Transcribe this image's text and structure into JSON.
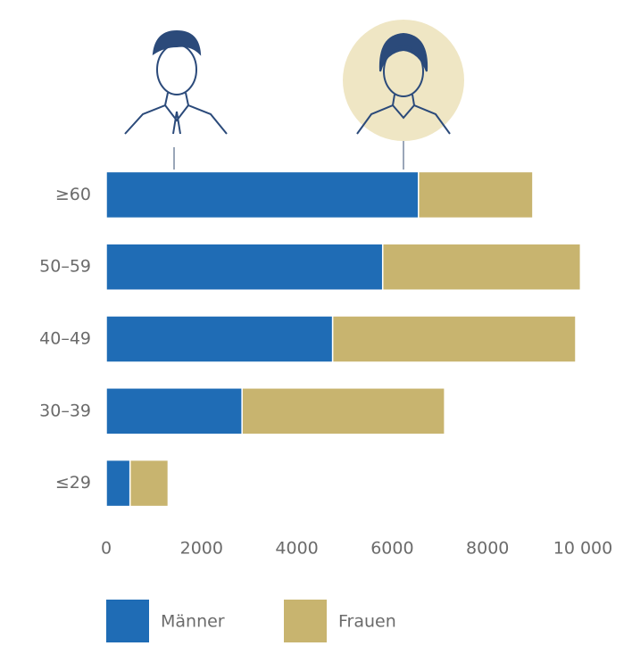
{
  "chart_data": {
    "type": "stacked-bar-horizontal",
    "categories": [
      "≥60",
      "50–59",
      "40–49",
      "30–39",
      "≤29"
    ],
    "series": [
      {
        "name": "Männer",
        "color": "#1f6cb5",
        "values": [
          6550,
          5800,
          4750,
          2850,
          500
        ]
      },
      {
        "name": "Frauen",
        "color": "#c8b46f",
        "values": [
          2400,
          4150,
          5100,
          4250,
          800
        ]
      }
    ],
    "xlim": [
      0,
      10000
    ],
    "xticks": [
      0,
      2000,
      4000,
      6000,
      8000,
      {
        "value": 10000,
        "label": "10 000"
      }
    ],
    "grid": false
  }
}
